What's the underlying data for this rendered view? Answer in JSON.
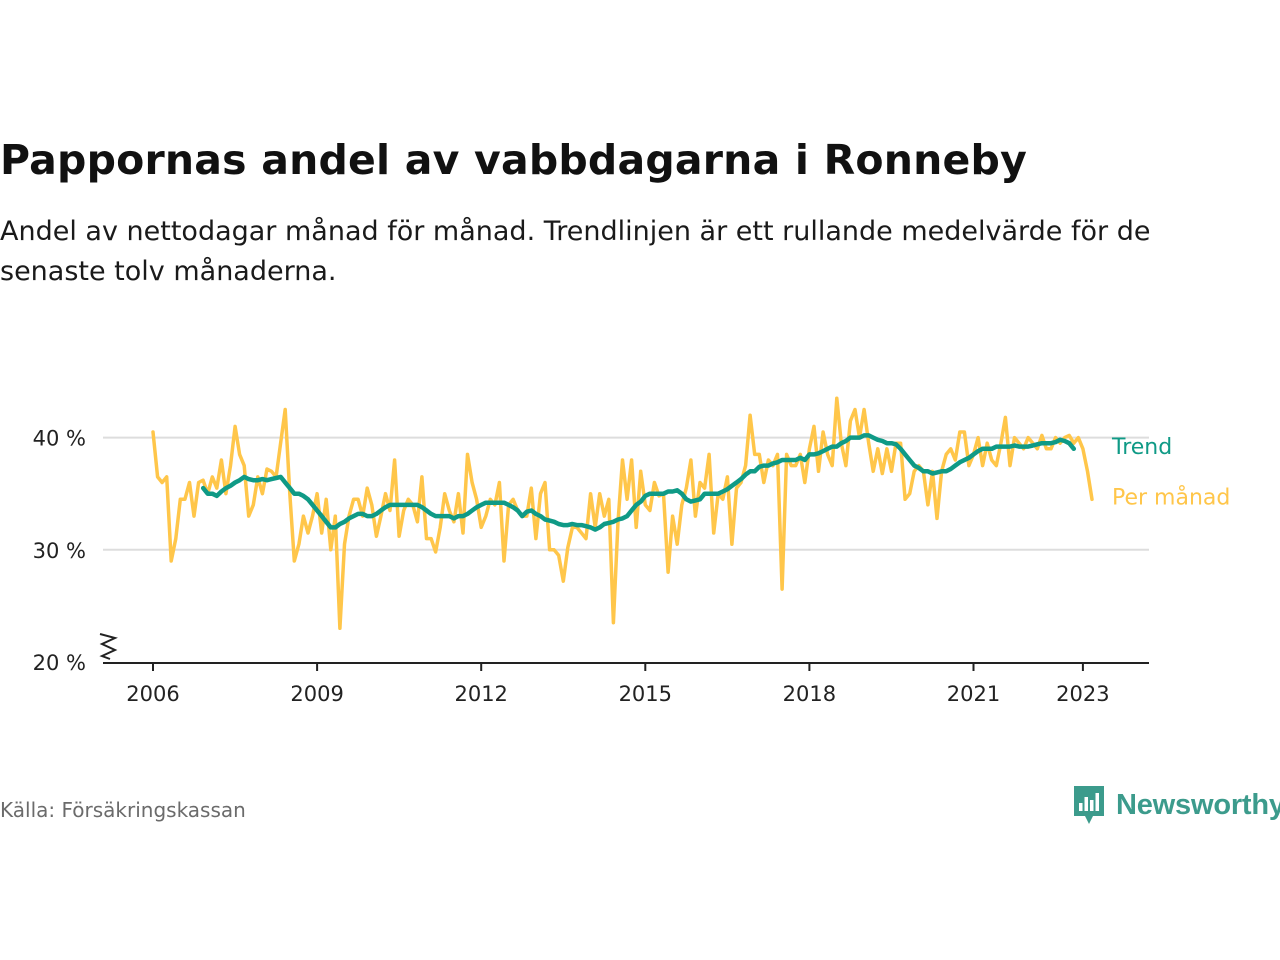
{
  "title": "Pappornas andel av vabbdagarna i Ronneby",
  "subtitle": "Andel av nettodagar månad för månad. Trendlinjen är ett rullande medelvärde för de senaste tolv månaderna.",
  "source": "Källa: Försäkringskassan",
  "brand": "Newsworthy",
  "colors": {
    "monthly": "#ffc64a",
    "trend": "#0f9a86",
    "grid": "#dddddd",
    "axis": "#222222",
    "brand": "#3c9b8c"
  },
  "chart_data": {
    "type": "line",
    "title": "Pappornas andel av vabbdagarna i Ronneby",
    "xlabel": "",
    "ylabel": "",
    "x_range": [
      2006.0,
      2023.25
    ],
    "ylim": [
      20,
      45
    ],
    "y_ticks": [
      20,
      30,
      40
    ],
    "y_tick_labels": [
      "20 %",
      "30 %",
      "40 %"
    ],
    "x_ticks": [
      2006,
      2009,
      2012,
      2015,
      2018,
      2021,
      2023
    ],
    "x_tick_labels": [
      "2006",
      "2009",
      "2012",
      "2015",
      "2018",
      "2021",
      "2023"
    ],
    "grid": true,
    "axis_break": true,
    "series": [
      {
        "name": "Per månad",
        "start": 2006.0,
        "step_months": 1,
        "values": [
          40.5,
          36.5,
          36,
          36.5,
          29,
          31,
          34.5,
          34.5,
          36,
          33,
          36,
          36.2,
          35,
          36.5,
          35.5,
          38,
          35,
          37.5,
          41,
          38.5,
          37.5,
          33,
          34,
          36.5,
          35,
          37.2,
          37,
          36.5,
          39.5,
          42.5,
          35,
          29,
          30.5,
          33,
          31.5,
          33,
          35,
          31.5,
          34.5,
          30,
          33,
          23,
          30.5,
          33,
          34.5,
          34.5,
          33,
          35.5,
          34,
          31.2,
          33,
          35,
          33.5,
          38,
          31.2,
          33.5,
          34.5,
          34,
          32.5,
          36.5,
          31,
          31,
          29.8,
          32,
          35,
          33.5,
          32.5,
          35,
          31.5,
          38.5,
          36,
          34.5,
          32,
          33,
          34.5,
          34,
          36,
          29,
          34,
          34.5,
          33.5,
          33,
          33,
          35.5,
          31,
          35,
          36,
          30,
          30,
          29.5,
          27.2,
          30.2,
          32,
          32,
          31.5,
          31,
          35,
          32,
          35,
          33,
          34.5,
          23.5,
          32.5,
          38,
          34.5,
          38,
          32,
          37,
          34,
          33.5,
          36,
          34.8,
          35,
          28,
          33,
          30.5,
          34,
          35.5,
          38,
          33,
          36,
          35.5,
          38.5,
          31.5,
          35,
          34.5,
          36.5,
          30.5,
          35.5,
          36,
          37.5,
          42,
          38.5,
          38.5,
          36,
          38,
          37.5,
          38.5,
          26.5,
          38.5,
          37.5,
          37.5,
          38.5,
          36,
          39,
          41,
          37,
          40.5,
          38.5,
          37.5,
          43.5,
          39.5,
          37.5,
          41.5,
          42.5,
          40,
          42.5,
          39.5,
          37,
          39,
          36.8,
          39,
          37,
          39.5,
          39.5,
          34.5,
          35,
          37,
          37.5,
          37,
          34,
          37,
          32.8,
          37,
          38.5,
          39,
          38,
          40.5,
          40.5,
          37.5,
          38.5,
          40,
          37.5,
          39.5,
          38,
          37.5,
          39.5,
          41.8,
          37.5,
          40,
          39.5,
          39,
          40,
          39.5,
          39,
          40.2,
          39,
          39,
          40,
          39.5,
          40,
          40.2,
          39.5,
          40,
          39,
          37,
          34.5
        ],
        "color": "#ffc64a"
      },
      {
        "name": "Trend",
        "start": 2006.917,
        "step_months": 1,
        "values": [
          35.5,
          35,
          35,
          34.8,
          35.2,
          35.5,
          35.7,
          36,
          36.2,
          36.5,
          36.3,
          36.2,
          36.2,
          36.3,
          36.2,
          36.3,
          36.4,
          36.5,
          36,
          35.5,
          35,
          35,
          34.8,
          34.5,
          34,
          33.5,
          33,
          32.5,
          32,
          32,
          32.3,
          32.5,
          32.8,
          33,
          33.2,
          33.2,
          33,
          33,
          33.2,
          33.5,
          33.8,
          34,
          34,
          34,
          34,
          34,
          34,
          34,
          33.8,
          33.5,
          33.2,
          33,
          33,
          33,
          33,
          32.8,
          33,
          33,
          33.2,
          33.5,
          33.8,
          34,
          34.2,
          34.2,
          34.2,
          34.2,
          34.2,
          34,
          33.8,
          33.5,
          33,
          33.4,
          33.5,
          33.2,
          33,
          32.7,
          32.6,
          32.5,
          32.3,
          32.2,
          32.2,
          32.3,
          32.2,
          32.2,
          32.1,
          32,
          31.8,
          32,
          32.3,
          32.4,
          32.5,
          32.7,
          32.8,
          33,
          33.5,
          34,
          34.3,
          34.8,
          35,
          35,
          35,
          35,
          35.2,
          35.2,
          35.3,
          35,
          34.5,
          34.3,
          34.4,
          34.5,
          35,
          35,
          35,
          35,
          35.2,
          35.4,
          35.7,
          36,
          36.3,
          36.7,
          37,
          37,
          37.4,
          37.5,
          37.5,
          37.7,
          37.8,
          38,
          38,
          38,
          38,
          38.2,
          38,
          38.5,
          38.5,
          38.6,
          38.8,
          39,
          39.2,
          39.2,
          39.5,
          39.7,
          40,
          40,
          40,
          40.2,
          40.2,
          40,
          39.8,
          39.7,
          39.5,
          39.5,
          39.4,
          39,
          38.5,
          38,
          37.5,
          37.3,
          37,
          37,
          36.8,
          36.9,
          37,
          37,
          37.2,
          37.5,
          37.8,
          38,
          38.2,
          38.5,
          38.8,
          39,
          39,
          39,
          39.2,
          39.2,
          39.2,
          39.2,
          39.3,
          39.2,
          39.2,
          39.2,
          39.3,
          39.4,
          39.5,
          39.5,
          39.5,
          39.6,
          39.8,
          39.7,
          39.5,
          39
        ],
        "color": "#0f9a86"
      }
    ]
  }
}
